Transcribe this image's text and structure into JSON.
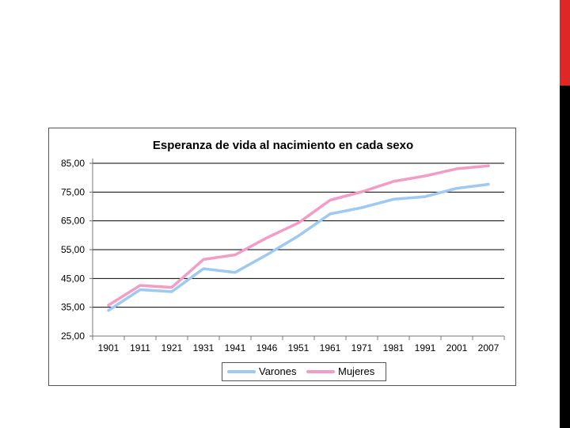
{
  "page": {
    "accent_dark": "#000000",
    "accent_red": "#e02727"
  },
  "chart_data": {
    "type": "line",
    "title": "Esperanza de vida al nacimiento en cada sexo",
    "xlabel": "",
    "ylabel": "",
    "categories": [
      "1901",
      "1911",
      "1921",
      "1931",
      "1941",
      "1946",
      "1951",
      "1961",
      "1971",
      "1981",
      "1991",
      "2001",
      "2007"
    ],
    "y_ticks": [
      "25,00",
      "35,00",
      "45,00",
      "55,00",
      "65,00",
      "75,00",
      "85,00"
    ],
    "ylim": [
      25,
      85
    ],
    "grid": true,
    "legend_position": "bottom",
    "series": [
      {
        "name": "Varones",
        "color": "#9ec9f2",
        "values": [
          33.9,
          41.1,
          40.4,
          48.4,
          47.1,
          53.2,
          59.8,
          67.4,
          69.6,
          72.5,
          73.4,
          76.3,
          77.7
        ]
      },
      {
        "name": "Mujeres",
        "color": "#f29cc6",
        "values": [
          35.7,
          42.6,
          41.9,
          51.6,
          53.2,
          59.1,
          64.3,
          72.2,
          75.1,
          78.7,
          80.6,
          83.1,
          84.1
        ]
      }
    ]
  }
}
